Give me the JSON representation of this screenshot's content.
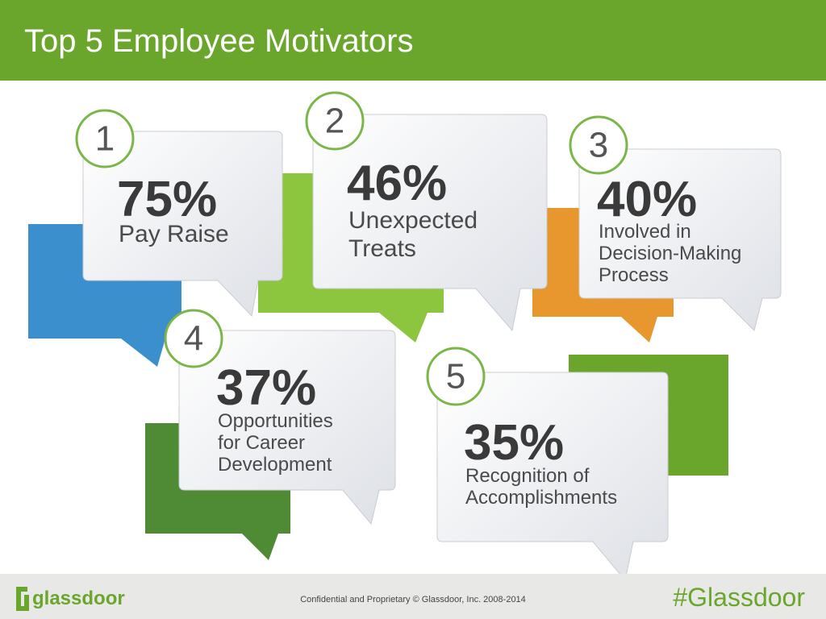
{
  "header": {
    "title": "Top 5 Employee Motivators"
  },
  "items": [
    {
      "rank": "1",
      "percent": "75%",
      "label": [
        "Pay Raise"
      ]
    },
    {
      "rank": "2",
      "percent": "46%",
      "label": [
        "Unexpected",
        "Treats"
      ]
    },
    {
      "rank": "3",
      "percent": "40%",
      "label": [
        "Involved in",
        "Decision-Making",
        "Process"
      ]
    },
    {
      "rank": "4",
      "percent": "37%",
      "label": [
        "Opportunities",
        "for Career",
        "Development"
      ]
    },
    {
      "rank": "5",
      "percent": "35%",
      "label": [
        "Recognition of",
        "Accomplishments"
      ]
    }
  ],
  "footer": {
    "logo": "glassdoor",
    "confidential": "Confidential and Proprietary © Glassdoor, Inc. 2008-2014",
    "hashtag": "#Glassdoor"
  }
}
